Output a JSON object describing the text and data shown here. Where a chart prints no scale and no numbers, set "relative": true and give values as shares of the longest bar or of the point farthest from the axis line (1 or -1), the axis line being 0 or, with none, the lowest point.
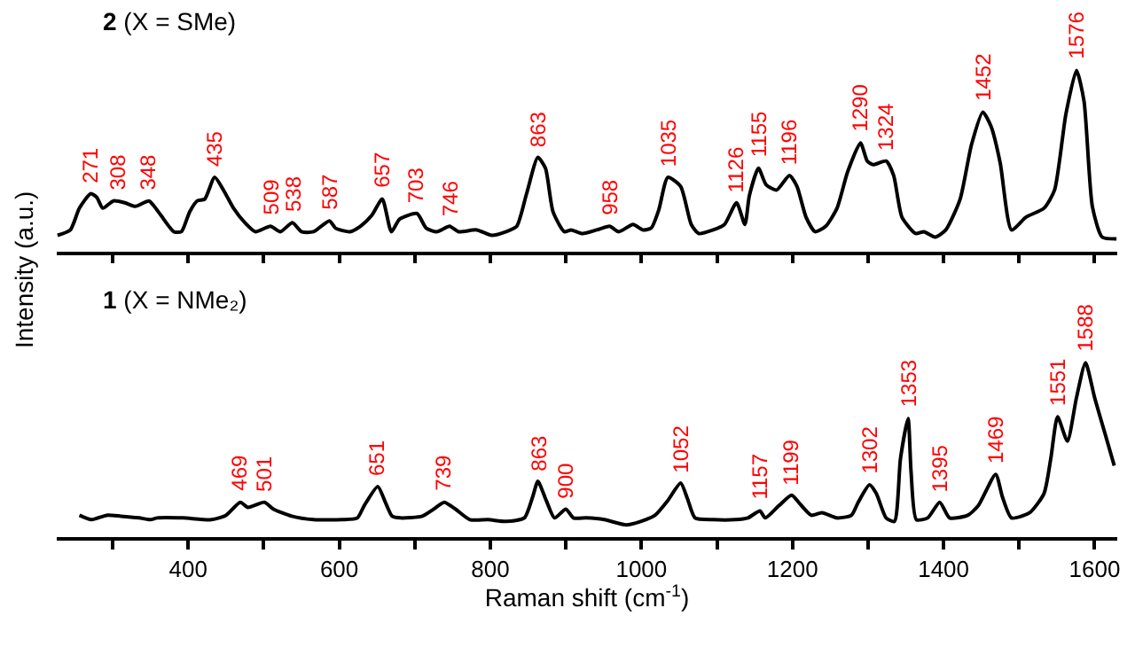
{
  "chart_data": [
    {
      "type": "line",
      "title": "2 (X = SMe)",
      "ylabel": "Intensity (a.u.)",
      "relative": true,
      "tick_labels": false,
      "xlim": [
        226,
        1630
      ],
      "xticks": [
        {
          "value": 300,
          "label": null
        },
        {
          "value": 400,
          "label": null
        },
        {
          "value": 500,
          "label": null
        },
        {
          "value": 600,
          "label": null
        },
        {
          "value": 700,
          "label": null
        },
        {
          "value": 800,
          "label": null
        },
        {
          "value": 900,
          "label": null
        },
        {
          "value": 1000,
          "label": null
        },
        {
          "value": 1100,
          "label": null
        },
        {
          "value": 1200,
          "label": null
        },
        {
          "value": 1300,
          "label": null
        },
        {
          "value": 1400,
          "label": null
        },
        {
          "value": 1500,
          "label": null
        },
        {
          "value": 1600,
          "label": null
        }
      ],
      "series": [
        {
          "color": "#000000",
          "x": [
            227,
            244,
            256,
            271,
            279,
            287,
            301,
            316,
            330,
            348,
            355,
            364,
            381,
            391,
            402,
            412,
            422,
            435,
            448,
            460,
            475,
            489,
            509,
            522,
            538,
            550,
            566,
            587,
            595,
            614,
            628,
            643,
            657,
            669,
            680,
            703,
            715,
            729,
            746,
            758,
            782,
            802,
            821,
            835,
            848,
            863,
            873,
            883,
            898,
            907,
            922,
            941,
            958,
            970,
            989,
            1002,
            1013,
            1023,
            1035,
            1052,
            1066,
            1076,
            1095,
            1110,
            1126,
            1137,
            1143,
            1155,
            1165,
            1179,
            1196,
            1206,
            1218,
            1230,
            1244,
            1259,
            1273,
            1290,
            1299,
            1307,
            1324,
            1334,
            1345,
            1363,
            1374,
            1389,
            1403,
            1422,
            1437,
            1452,
            1463,
            1475,
            1490,
            1509,
            1533,
            1547,
            1562,
            1576,
            1586,
            1597,
            1610,
            1629
          ],
          "values": [
            0.09,
            0.12,
            0.24,
            0.32,
            0.3,
            0.24,
            0.28,
            0.27,
            0.25,
            0.28,
            0.25,
            0.2,
            0.11,
            0.11,
            0.22,
            0.28,
            0.29,
            0.41,
            0.33,
            0.24,
            0.16,
            0.11,
            0.14,
            0.11,
            0.16,
            0.11,
            0.11,
            0.17,
            0.13,
            0.11,
            0.14,
            0.2,
            0.29,
            0.11,
            0.18,
            0.21,
            0.13,
            0.11,
            0.14,
            0.11,
            0.12,
            0.09,
            0.11,
            0.14,
            0.32,
            0.52,
            0.46,
            0.22,
            0.11,
            0.12,
            0.1,
            0.12,
            0.14,
            0.11,
            0.15,
            0.12,
            0.13,
            0.23,
            0.41,
            0.36,
            0.15,
            0.1,
            0.12,
            0.15,
            0.27,
            0.15,
            0.31,
            0.46,
            0.37,
            0.34,
            0.42,
            0.36,
            0.19,
            0.11,
            0.14,
            0.24,
            0.44,
            0.6,
            0.5,
            0.48,
            0.5,
            0.42,
            0.19,
            0.1,
            0.11,
            0.08,
            0.12,
            0.29,
            0.59,
            0.77,
            0.69,
            0.49,
            0.12,
            0.19,
            0.24,
            0.34,
            0.76,
            1.0,
            0.83,
            0.25,
            0.08,
            0.07
          ]
        }
      ],
      "annotations": [
        {
          "text": "271",
          "x": 271,
          "y": 0.32
        },
        {
          "text": "308",
          "x": 308,
          "y": 0.28
        },
        {
          "text": "348",
          "x": 348,
          "y": 0.28
        },
        {
          "text": "435",
          "x": 435,
          "y": 0.41
        },
        {
          "text": "509",
          "x": 509,
          "y": 0.14
        },
        {
          "text": "538",
          "x": 538,
          "y": 0.16
        },
        {
          "text": "587",
          "x": 587,
          "y": 0.17
        },
        {
          "text": "657",
          "x": 657,
          "y": 0.29
        },
        {
          "text": "703",
          "x": 703,
          "y": 0.21
        },
        {
          "text": "746",
          "x": 746,
          "y": 0.14
        },
        {
          "text": "863",
          "x": 863,
          "y": 0.52
        },
        {
          "text": "958",
          "x": 958,
          "y": 0.14
        },
        {
          "text": "1035",
          "x": 1035,
          "y": 0.41
        },
        {
          "text": "1126",
          "x": 1126,
          "y": 0.27
        },
        {
          "text": "1155",
          "x": 1155,
          "y": 0.46
        },
        {
          "text": "1196",
          "x": 1196,
          "y": 0.42
        },
        {
          "text": "1290",
          "x": 1290,
          "y": 0.6
        },
        {
          "text": "1324",
          "x": 1324,
          "y": 0.5
        },
        {
          "text": "1452",
          "x": 1452,
          "y": 0.77
        },
        {
          "text": "1576",
          "x": 1576,
          "y": 1.0
        }
      ]
    },
    {
      "type": "line",
      "title": "1 (X = NMe₂)",
      "xlabel": "Raman shift (cm$^{-1}$)",
      "relative": true,
      "tick_labels": "x",
      "xlim": [
        226,
        1630
      ],
      "xticks": [
        {
          "value": 300,
          "label": null
        },
        400,
        {
          "value": 500,
          "label": null
        },
        600,
        {
          "value": 700,
          "label": null
        },
        800,
        {
          "value": 900,
          "label": null
        },
        1000,
        {
          "value": 1100,
          "label": null
        },
        1200,
        {
          "value": 1300,
          "label": null
        },
        1400,
        {
          "value": 1500,
          "label": null
        },
        1600
      ],
      "series": [
        {
          "color": "#000000",
          "x": [
            256,
            272,
            292,
            311,
            335,
            350,
            359,
            393,
            431,
            450,
            469,
            479,
            501,
            513,
            537,
            566,
            604,
            624,
            633,
            651,
            661,
            670,
            681,
            710,
            725,
            739,
            754,
            773,
            797,
            821,
            845,
            856,
            863,
            874,
            885,
            900,
            910,
            927,
            951,
            980,
            999,
            1018,
            1035,
            1052,
            1061,
            1071,
            1095,
            1124,
            1141,
            1157,
            1164,
            1182,
            1199,
            1210,
            1225,
            1239,
            1259,
            1278,
            1287,
            1302,
            1311,
            1324,
            1335,
            1343,
            1353,
            1357,
            1364,
            1379,
            1395,
            1408,
            1432,
            1446,
            1469,
            1478,
            1490,
            1514,
            1533,
            1542,
            1551,
            1564,
            1576,
            1588,
            1600,
            1614,
            1626
          ],
          "values": [
            0.125,
            0.1,
            0.125,
            0.12,
            0.11,
            0.1,
            0.11,
            0.11,
            0.1,
            0.125,
            0.2,
            0.17,
            0.2,
            0.16,
            0.12,
            0.1,
            0.1,
            0.11,
            0.18,
            0.29,
            0.2,
            0.12,
            0.11,
            0.12,
            0.16,
            0.2,
            0.16,
            0.1,
            0.1,
            0.09,
            0.11,
            0.23,
            0.32,
            0.21,
            0.11,
            0.16,
            0.11,
            0.11,
            0.1,
            0.07,
            0.09,
            0.125,
            0.21,
            0.31,
            0.22,
            0.11,
            0.1,
            0.1,
            0.11,
            0.15,
            0.11,
            0.18,
            0.24,
            0.19,
            0.125,
            0.14,
            0.11,
            0.125,
            0.2,
            0.3,
            0.25,
            0.11,
            0.09,
            0.45,
            0.68,
            0.375,
            0.1,
            0.11,
            0.2,
            0.11,
            0.125,
            0.18,
            0.36,
            0.23,
            0.11,
            0.14,
            0.25,
            0.45,
            0.69,
            0.55,
            0.8,
            1.0,
            0.8,
            0.59,
            0.41
          ]
        }
      ],
      "annotations": [
        {
          "text": "469",
          "x": 469,
          "y": 0.2
        },
        {
          "text": "501",
          "x": 501,
          "y": 0.2
        },
        {
          "text": "651",
          "x": 651,
          "y": 0.29
        },
        {
          "text": "739",
          "x": 739,
          "y": 0.2
        },
        {
          "text": "863",
          "x": 863,
          "y": 0.32
        },
        {
          "text": "900",
          "x": 900,
          "y": 0.16
        },
        {
          "text": "1052",
          "x": 1052,
          "y": 0.31
        },
        {
          "text": "1157",
          "x": 1157,
          "y": 0.15
        },
        {
          "text": "1199",
          "x": 1199,
          "y": 0.24
        },
        {
          "text": "1302",
          "x": 1302,
          "y": 0.3
        },
        {
          "text": "1353",
          "x": 1353,
          "y": 0.68
        },
        {
          "text": "1395",
          "x": 1395,
          "y": 0.2
        },
        {
          "text": "1469",
          "x": 1469,
          "y": 0.36
        },
        {
          "text": "1551",
          "x": 1551,
          "y": 0.69
        },
        {
          "text": "1588",
          "x": 1588,
          "y": 1.0
        }
      ]
    }
  ]
}
